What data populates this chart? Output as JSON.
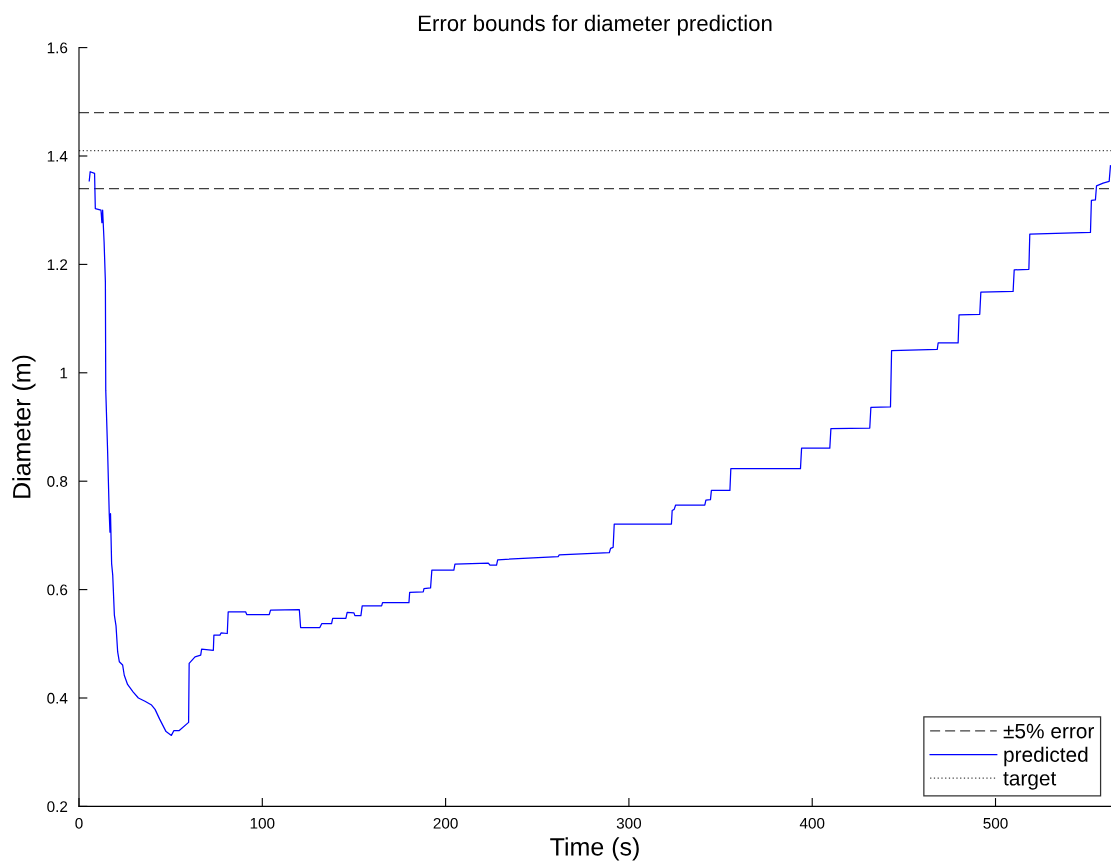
{
  "chart_data": {
    "type": "line",
    "title": "Error bounds for diameter prediction",
    "xlabel": "Time (s)",
    "ylabel": "Diameter (m)",
    "xlim": [
      0,
      563
    ],
    "ylim": [
      0.2,
      1.6
    ],
    "xticks": [
      0,
      100,
      200,
      300,
      400,
      500
    ],
    "yticks": [
      0.2,
      0.4,
      0.6,
      0.8,
      1,
      1.2,
      1.4,
      1.6
    ],
    "grid": false,
    "legend": "bottom right",
    "line_style": "solid",
    "marker": "none",
    "ref_lines": [
      {
        "axis": "y",
        "value": 1.48,
        "label": "±5% error",
        "color": "#404040",
        "line_style": "dashed"
      },
      {
        "axis": "y",
        "value": 1.34,
        "color": "#404040",
        "line_style": "dashed"
      },
      {
        "axis": "y",
        "value": 1.41,
        "label": "target",
        "color": "#444444",
        "line_style": "dotted"
      }
    ],
    "series": [
      {
        "name": "predicted",
        "color": "#0000ff",
        "x": [
          5.6,
          6.1,
          8.5,
          8.9,
          12.0,
          12.5,
          12.9,
          13.7,
          14.4,
          14.6,
          15.6,
          16.5,
          16.9,
          17.2,
          17.8,
          18.4,
          19.3,
          20.2,
          21.1,
          22.0,
          23.8,
          24.7,
          26.5,
          29.6,
          32.4,
          36.0,
          39.6,
          41.5,
          44.0,
          47.5,
          50.4,
          51.8,
          54.7,
          59.8,
          60.1,
          63.3,
          66.4,
          66.9,
          73.3,
          73.6,
          76.9,
          77.5,
          80.9,
          81.4,
          90.9,
          91.5,
          103.8,
          104.5,
          120.2,
          120.9,
          131.4,
          132.4,
          137.8,
          138.4,
          145.6,
          146.3,
          150.0,
          150.5,
          153.8,
          154.5,
          165.1,
          165.6,
          180.0,
          180.4,
          187.8,
          188.2,
          191.8,
          192.5,
          204.5,
          205.1,
          223.3,
          224.2,
          227.8,
          228.4,
          261.4,
          262.0,
          289.3,
          290.0,
          291.4,
          292.0,
          323.2,
          323.6,
          324.7,
          325.5,
          341.4,
          342.0,
          344.5,
          345.0,
          355.1,
          355.6,
          393.6,
          394.2,
          409.6,
          410.2,
          431.4,
          432.0,
          442.7,
          443.3,
          468.2,
          468.7,
          479.6,
          480.1,
          491.4,
          492.0,
          509.6,
          510.2,
          518.2,
          518.7,
          551.8,
          552.3,
          554.5,
          555.1,
          558.7,
          562.0,
          562.7
        ],
        "values": [
          1.354,
          1.371,
          1.368,
          1.303,
          1.3,
          1.277,
          1.3,
          1.241,
          1.168,
          0.968,
          0.857,
          0.74,
          0.706,
          0.74,
          0.648,
          0.627,
          0.553,
          0.533,
          0.485,
          0.467,
          0.461,
          0.442,
          0.425,
          0.411,
          0.4,
          0.394,
          0.387,
          0.379,
          0.361,
          0.338,
          0.331,
          0.34,
          0.34,
          0.355,
          0.464,
          0.476,
          0.479,
          0.49,
          0.488,
          0.516,
          0.516,
          0.52,
          0.519,
          0.559,
          0.559,
          0.554,
          0.554,
          0.562,
          0.563,
          0.53,
          0.53,
          0.537,
          0.537,
          0.547,
          0.547,
          0.558,
          0.557,
          0.552,
          0.552,
          0.57,
          0.57,
          0.576,
          0.576,
          0.595,
          0.596,
          0.602,
          0.603,
          0.636,
          0.636,
          0.647,
          0.649,
          0.645,
          0.645,
          0.655,
          0.661,
          0.664,
          0.668,
          0.676,
          0.678,
          0.721,
          0.721,
          0.746,
          0.748,
          0.756,
          0.756,
          0.765,
          0.766,
          0.783,
          0.783,
          0.823,
          0.823,
          0.861,
          0.861,
          0.897,
          0.898,
          0.936,
          0.937,
          1.041,
          1.043,
          1.055,
          1.055,
          1.107,
          1.108,
          1.149,
          1.15,
          1.19,
          1.191,
          1.256,
          1.259,
          1.318,
          1.319,
          1.345,
          1.35,
          1.353,
          1.382
        ]
      }
    ]
  }
}
